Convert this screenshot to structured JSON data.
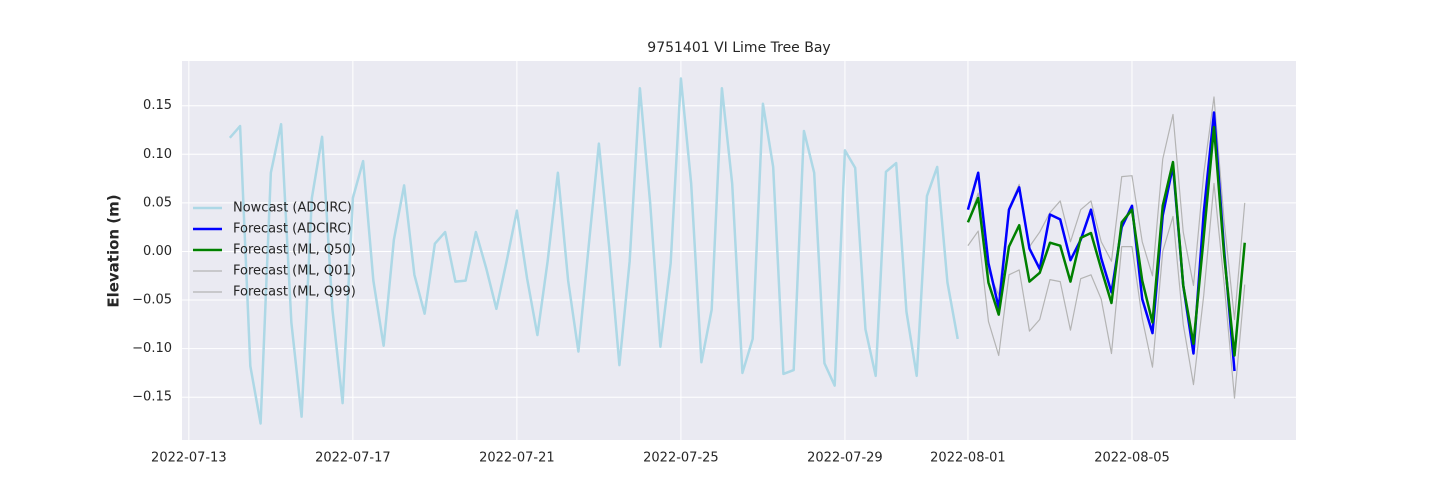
{
  "chart_data": {
    "type": "line",
    "title": "9751401 VI Lime Tree Bay",
    "y_label": "Elevation (m)",
    "x": [
      "2022-07-14T00:00",
      "2022-07-14T06:00",
      "2022-07-14T12:00",
      "2022-07-14T18:00",
      "2022-07-15T00:00",
      "2022-07-15T06:00",
      "2022-07-15T12:00",
      "2022-07-15T18:00",
      "2022-07-16T00:00",
      "2022-07-16T06:00",
      "2022-07-16T12:00",
      "2022-07-16T18:00",
      "2022-07-17T00:00",
      "2022-07-17T06:00",
      "2022-07-17T12:00",
      "2022-07-17T18:00",
      "2022-07-18T00:00",
      "2022-07-18T06:00",
      "2022-07-18T12:00",
      "2022-07-18T18:00",
      "2022-07-19T00:00",
      "2022-07-19T06:00",
      "2022-07-19T12:00",
      "2022-07-19T18:00",
      "2022-07-20T00:00",
      "2022-07-20T06:00",
      "2022-07-20T12:00",
      "2022-07-20T18:00",
      "2022-07-21T00:00",
      "2022-07-21T06:00",
      "2022-07-21T12:00",
      "2022-07-21T18:00",
      "2022-07-22T00:00",
      "2022-07-22T06:00",
      "2022-07-22T12:00",
      "2022-07-22T18:00",
      "2022-07-23T00:00",
      "2022-07-23T06:00",
      "2022-07-23T12:00",
      "2022-07-23T18:00",
      "2022-07-24T00:00",
      "2022-07-24T06:00",
      "2022-07-24T12:00",
      "2022-07-24T18:00",
      "2022-07-25T00:00",
      "2022-07-25T06:00",
      "2022-07-25T12:00",
      "2022-07-25T18:00",
      "2022-07-26T00:00",
      "2022-07-26T06:00",
      "2022-07-26T12:00",
      "2022-07-26T18:00",
      "2022-07-27T00:00",
      "2022-07-27T06:00",
      "2022-07-27T12:00",
      "2022-07-27T18:00",
      "2022-07-28T00:00",
      "2022-07-28T06:00",
      "2022-07-28T12:00",
      "2022-07-28T18:00",
      "2022-07-29T00:00",
      "2022-07-29T06:00",
      "2022-07-29T12:00",
      "2022-07-29T18:00",
      "2022-07-30T00:00",
      "2022-07-30T06:00",
      "2022-07-30T12:00",
      "2022-07-30T18:00",
      "2022-07-31T00:00",
      "2022-07-31T06:00",
      "2022-07-31T12:00",
      "2022-07-31T18:00",
      "2022-08-01T00:00",
      "2022-08-01T06:00",
      "2022-08-01T12:00",
      "2022-08-01T18:00",
      "2022-08-02T00:00",
      "2022-08-02T06:00",
      "2022-08-02T12:00",
      "2022-08-02T18:00",
      "2022-08-03T00:00",
      "2022-08-03T06:00",
      "2022-08-03T12:00",
      "2022-08-03T18:00",
      "2022-08-04T00:00",
      "2022-08-04T06:00",
      "2022-08-04T12:00",
      "2022-08-04T18:00",
      "2022-08-05T00:00",
      "2022-08-05T06:00",
      "2022-08-05T12:00",
      "2022-08-05T18:00",
      "2022-08-06T00:00",
      "2022-08-06T06:00",
      "2022-08-06T12:00",
      "2022-08-06T18:00",
      "2022-08-07T00:00",
      "2022-08-07T06:00",
      "2022-08-07T12:00",
      "2022-08-07T18:00"
    ],
    "series": [
      {
        "name": "Nowcast (ADCIRC)",
        "color": "#add8e6",
        "width": 2.5,
        "values": [
          0.117,
          0.129,
          -0.118,
          -0.177,
          0.081,
          0.131,
          -0.073,
          -0.17,
          0.055,
          0.118,
          -0.059,
          -0.156,
          0.055,
          0.093,
          -0.03,
          -0.097,
          0.012,
          0.068,
          -0.024,
          -0.064,
          0.008,
          0.02,
          -0.031,
          -0.03,
          0.02,
          -0.017,
          -0.059,
          -0.01,
          0.042,
          -0.028,
          -0.086,
          -0.01,
          0.081,
          -0.03,
          -0.103,
          0.005,
          0.111,
          0.005,
          -0.117,
          -0.01,
          0.168,
          0.05,
          -0.098,
          -0.012,
          0.178,
          0.07,
          -0.114,
          -0.06,
          0.168,
          0.07,
          -0.125,
          -0.09,
          0.152,
          0.087,
          -0.126,
          -0.122,
          0.124,
          0.081,
          -0.115,
          -0.138,
          0.104,
          0.086,
          -0.08,
          -0.128,
          0.082,
          0.091,
          -0.062,
          -0.128,
          0.057,
          0.087,
          -0.032,
          -0.09,
          null,
          null,
          null,
          null,
          null,
          null,
          null,
          null,
          null,
          null,
          null,
          null,
          null,
          null,
          null,
          null,
          null,
          null,
          null,
          null,
          null,
          null,
          null,
          null,
          null,
          null,
          null,
          null
        ]
      },
      {
        "name": "Forecast (ADCIRC)",
        "color": "#0000ff",
        "width": 2.5,
        "values": [
          null,
          null,
          null,
          null,
          null,
          null,
          null,
          null,
          null,
          null,
          null,
          null,
          null,
          null,
          null,
          null,
          null,
          null,
          null,
          null,
          null,
          null,
          null,
          null,
          null,
          null,
          null,
          null,
          null,
          null,
          null,
          null,
          null,
          null,
          null,
          null,
          null,
          null,
          null,
          null,
          null,
          null,
          null,
          null,
          null,
          null,
          null,
          null,
          null,
          null,
          null,
          null,
          null,
          null,
          null,
          null,
          null,
          null,
          null,
          null,
          null,
          null,
          null,
          null,
          null,
          null,
          null,
          null,
          null,
          null,
          null,
          null,
          0.043,
          0.081,
          -0.012,
          -0.058,
          0.043,
          0.066,
          0.003,
          -0.018,
          0.038,
          0.033,
          -0.009,
          0.012,
          0.043,
          -0.007,
          -0.042,
          0.025,
          0.047,
          -0.049,
          -0.084,
          0.037,
          0.088,
          -0.035,
          -0.105,
          0.04,
          0.143,
          0.0,
          -0.123,
          null
        ]
      },
      {
        "name": "Forecast (ML, Q50)",
        "color": "#008000",
        "width": 2.5,
        "values": [
          null,
          null,
          null,
          null,
          null,
          null,
          null,
          null,
          null,
          null,
          null,
          null,
          null,
          null,
          null,
          null,
          null,
          null,
          null,
          null,
          null,
          null,
          null,
          null,
          null,
          null,
          null,
          null,
          null,
          null,
          null,
          null,
          null,
          null,
          null,
          null,
          null,
          null,
          null,
          null,
          null,
          null,
          null,
          null,
          null,
          null,
          null,
          null,
          null,
          null,
          null,
          null,
          null,
          null,
          null,
          null,
          null,
          null,
          null,
          null,
          null,
          null,
          null,
          null,
          null,
          null,
          null,
          null,
          null,
          null,
          null,
          null,
          0.03,
          0.055,
          -0.032,
          -0.065,
          0.005,
          0.027,
          -0.031,
          -0.022,
          0.009,
          0.006,
          -0.031,
          0.014,
          0.019,
          -0.018,
          -0.053,
          0.03,
          0.043,
          -0.03,
          -0.073,
          0.047,
          0.092,
          -0.035,
          -0.095,
          0.015,
          0.128,
          -0.005,
          -0.107,
          0.009
        ]
      },
      {
        "name": "Forecast (ML, Q01)",
        "color": "#b4b4b4",
        "width": 1.2,
        "values": [
          null,
          null,
          null,
          null,
          null,
          null,
          null,
          null,
          null,
          null,
          null,
          null,
          null,
          null,
          null,
          null,
          null,
          null,
          null,
          null,
          null,
          null,
          null,
          null,
          null,
          null,
          null,
          null,
          null,
          null,
          null,
          null,
          null,
          null,
          null,
          null,
          null,
          null,
          null,
          null,
          null,
          null,
          null,
          null,
          null,
          null,
          null,
          null,
          null,
          null,
          null,
          null,
          null,
          null,
          null,
          null,
          null,
          null,
          null,
          null,
          null,
          null,
          null,
          null,
          null,
          null,
          null,
          null,
          null,
          null,
          null,
          null,
          0.006,
          0.021,
          -0.072,
          -0.107,
          -0.024,
          -0.019,
          -0.082,
          -0.07,
          -0.029,
          -0.031,
          -0.081,
          -0.028,
          -0.024,
          -0.049,
          -0.105,
          0.005,
          0.005,
          -0.069,
          -0.119,
          0.0,
          0.036,
          -0.075,
          -0.137,
          -0.045,
          0.07,
          -0.034,
          -0.151,
          -0.034
        ]
      },
      {
        "name": "Forecast (ML, Q99)",
        "color": "#b4b4b4",
        "width": 1.2,
        "values": [
          null,
          null,
          null,
          null,
          null,
          null,
          null,
          null,
          null,
          null,
          null,
          null,
          null,
          null,
          null,
          null,
          null,
          null,
          null,
          null,
          null,
          null,
          null,
          null,
          null,
          null,
          null,
          null,
          null,
          null,
          null,
          null,
          null,
          null,
          null,
          null,
          null,
          null,
          null,
          null,
          null,
          null,
          null,
          null,
          null,
          null,
          null,
          null,
          null,
          null,
          null,
          null,
          null,
          null,
          null,
          null,
          null,
          null,
          null,
          null,
          null,
          null,
          null,
          null,
          null,
          null,
          null,
          null,
          null,
          null,
          null,
          null,
          0.03,
          0.06,
          -0.02,
          -0.045,
          0.045,
          0.069,
          0.005,
          0.02,
          0.04,
          0.052,
          0.01,
          0.043,
          0.052,
          0.01,
          -0.01,
          0.077,
          0.078,
          0.01,
          -0.025,
          0.095,
          0.141,
          0.02,
          -0.035,
          0.08,
          0.159,
          0.03,
          -0.07,
          0.05
        ]
      }
    ],
    "xlim": [
      "2022-07-12T20:00",
      "2022-08-09T00:00"
    ],
    "xticks": [
      "2022-07-13",
      "2022-07-17",
      "2022-07-21",
      "2022-07-25",
      "2022-07-29",
      "2022-08-01",
      "2022-08-05"
    ],
    "ylim": [
      -0.194,
      0.196
    ],
    "yticks": [
      {
        "value": -0.15,
        "label": "−0.15"
      },
      {
        "value": -0.1,
        "label": "−0.10"
      },
      {
        "value": -0.05,
        "label": "−0.05"
      },
      {
        "value": 0,
        "label": "0.00"
      },
      {
        "value": 0.05,
        "label": "0.05"
      },
      {
        "value": 0.1,
        "label": "0.10"
      },
      {
        "value": 0.15,
        "label": "0.15"
      }
    ],
    "grid": true,
    "legend": "left"
  }
}
